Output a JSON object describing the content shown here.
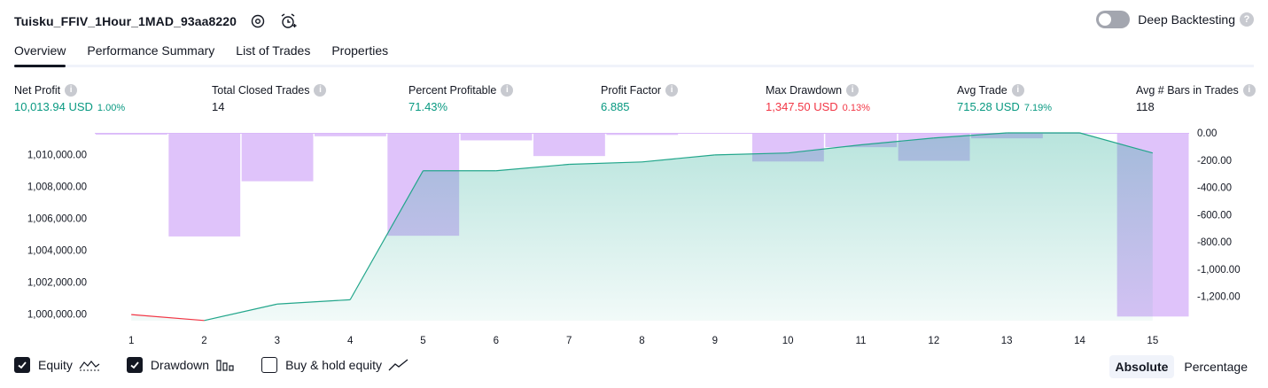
{
  "header": {
    "title": "Tuisku_FFIV_1Hour_1MAD_93aa8220",
    "settings_icon": "gear-icon",
    "alert_icon": "alarm-add-icon"
  },
  "deep_backtesting": {
    "label": "Deep Backtesting",
    "enabled": false,
    "help": "?"
  },
  "tabs": [
    {
      "label": "Overview",
      "active": true
    },
    {
      "label": "Performance Summary",
      "active": false
    },
    {
      "label": "List of Trades",
      "active": false
    },
    {
      "label": "Properties",
      "active": false
    }
  ],
  "metrics": {
    "net_profit": {
      "label": "Net Profit",
      "value": "10,013.94 USD",
      "sub": "1.00%"
    },
    "total_closed_trades": {
      "label": "Total Closed Trades",
      "value": "14"
    },
    "percent_profitable": {
      "label": "Percent Profitable",
      "value": "71.43%"
    },
    "profit_factor": {
      "label": "Profit Factor",
      "value": "6.885"
    },
    "max_drawdown": {
      "label": "Max Drawdown",
      "value": "1,347.50 USD",
      "sub": "0.13%"
    },
    "avg_trade": {
      "label": "Avg Trade",
      "value": "715.28 USD",
      "sub": "7.19%"
    },
    "avg_bars": {
      "label": "Avg # Bars in Trades",
      "value": "118"
    },
    "info_icon": "i"
  },
  "colors": {
    "profit": "#089981",
    "loss": "#f23645",
    "equity_line": "#22a68b",
    "drawdown_bar": "#d9b8f9",
    "overlap": "#b3b6e6"
  },
  "chart_data": {
    "type": "line",
    "x": [
      1,
      2,
      3,
      4,
      5,
      6,
      7,
      8,
      9,
      10,
      11,
      12,
      13,
      14,
      15
    ],
    "x_tick_labels": [
      "1",
      "2",
      "3",
      "4",
      "5",
      "6",
      "7",
      "8",
      "9",
      "10",
      "11",
      "12",
      "13",
      "14",
      "15"
    ],
    "series": [
      {
        "name": "Equity",
        "axis": "left",
        "type": "area",
        "values": [
          999970,
          999600,
          1000630,
          1000900,
          1008980,
          1008980,
          1009380,
          1009530,
          1009970,
          1010090,
          1010600,
          1011030,
          1011350,
          1011350,
          1010090
        ]
      },
      {
        "name": "Drawdown",
        "axis": "right",
        "type": "bar",
        "values": [
          -2,
          -760,
          -355,
          -25,
          -755,
          -55,
          -170,
          -15,
          0,
          -210,
          -105,
          -205,
          -40,
          0,
          -1347.5
        ]
      }
    ],
    "left_axis": {
      "ticks": [
        1000000,
        1002000,
        1004000,
        1006000,
        1008000,
        1010000
      ],
      "tick_labels": [
        "1,000,000.00",
        "1,002,000.00",
        "1,004,000.00",
        "1,006,000.00",
        "1,008,000.00",
        "1,010,000.00"
      ],
      "ylim": [
        999700,
        1011350
      ]
    },
    "right_axis": {
      "ticks": [
        0,
        -200,
        -400,
        -600,
        -800,
        -1000,
        -1200
      ],
      "tick_labels": [
        "0.00",
        "-200.00",
        "-400.00",
        "-600.00",
        "-800.00",
        "-1,000.00",
        "-1,200.00"
      ],
      "ylim": [
        -1365,
        0
      ]
    },
    "grid": false
  },
  "legend": [
    {
      "label": "Equity",
      "checked": true,
      "icon": "equity-icon"
    },
    {
      "label": "Drawdown",
      "checked": true,
      "icon": "drawdown-bars-icon"
    },
    {
      "label": "Buy & hold equity",
      "checked": false,
      "icon": "buy-hold-line-icon"
    }
  ],
  "scale": {
    "absolute": "Absolute",
    "percentage": "Percentage",
    "selected": "Absolute"
  }
}
